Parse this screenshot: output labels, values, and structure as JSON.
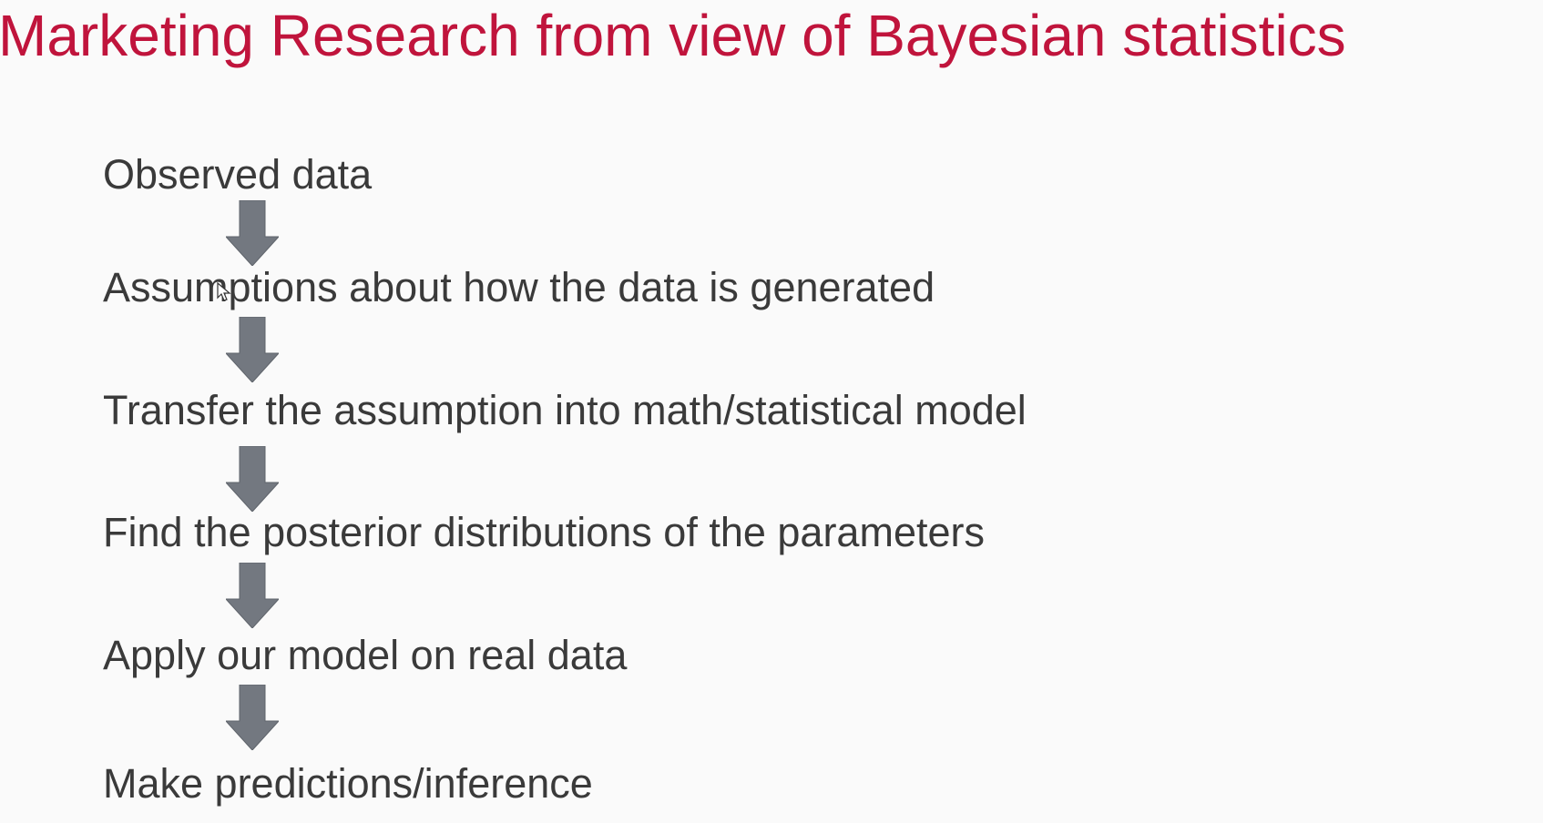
{
  "title": "Marketing Research from view of Bayesian statistics",
  "steps": [
    "Observed data",
    "Assumptions about how the data is generated",
    "Transfer the assumption into math/statistical model",
    "Find the posterior distributions of the parameters",
    "Apply our model on real data",
    "Make predictions/inference"
  ],
  "colors": {
    "title": "#c0143c",
    "text": "#3a3a3a",
    "arrow": "#737880",
    "background": "#fafafa"
  },
  "icons": {
    "arrow": "down-arrow-icon",
    "cursor": "mouse-pointer-icon"
  }
}
